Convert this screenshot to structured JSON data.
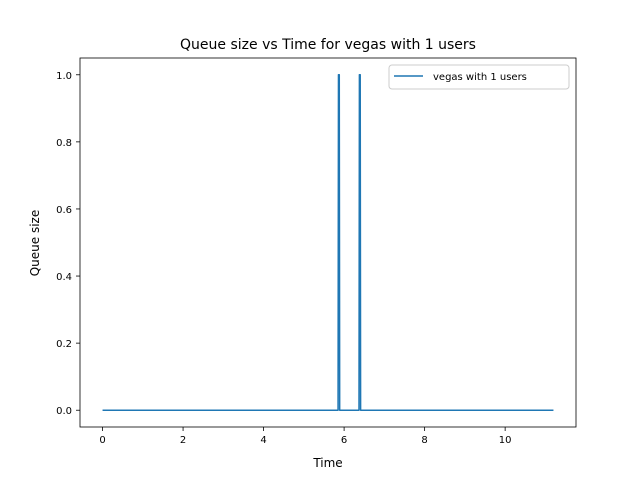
{
  "chart_data": {
    "type": "line",
    "title": "Queue size vs Time for vegas with 1 users",
    "xlabel": "Time",
    "ylabel": "Queue size",
    "xlim": [
      -0.56,
      11.76
    ],
    "ylim": [
      -0.05,
      1.05
    ],
    "xticks": [
      0,
      2,
      4,
      6,
      8,
      10
    ],
    "xtick_labels": [
      "0",
      "2",
      "4",
      "6",
      "8",
      "10"
    ],
    "yticks": [
      0.0,
      0.2,
      0.4,
      0.6,
      0.8,
      1.0
    ],
    "ytick_labels": [
      "0.0",
      "0.2",
      "0.4",
      "0.6",
      "0.8",
      "1.0"
    ],
    "grid": false,
    "legend_position": "top-right",
    "series": [
      {
        "name": "vegas with 1 users",
        "color": "#1f77b4",
        "points": [
          [
            0.0,
            0
          ],
          [
            5.85,
            0
          ],
          [
            5.86,
            1
          ],
          [
            5.88,
            1
          ],
          [
            5.89,
            0
          ],
          [
            6.37,
            0
          ],
          [
            6.38,
            1
          ],
          [
            6.4,
            1
          ],
          [
            6.41,
            0
          ],
          [
            11.2,
            0
          ]
        ]
      }
    ]
  }
}
